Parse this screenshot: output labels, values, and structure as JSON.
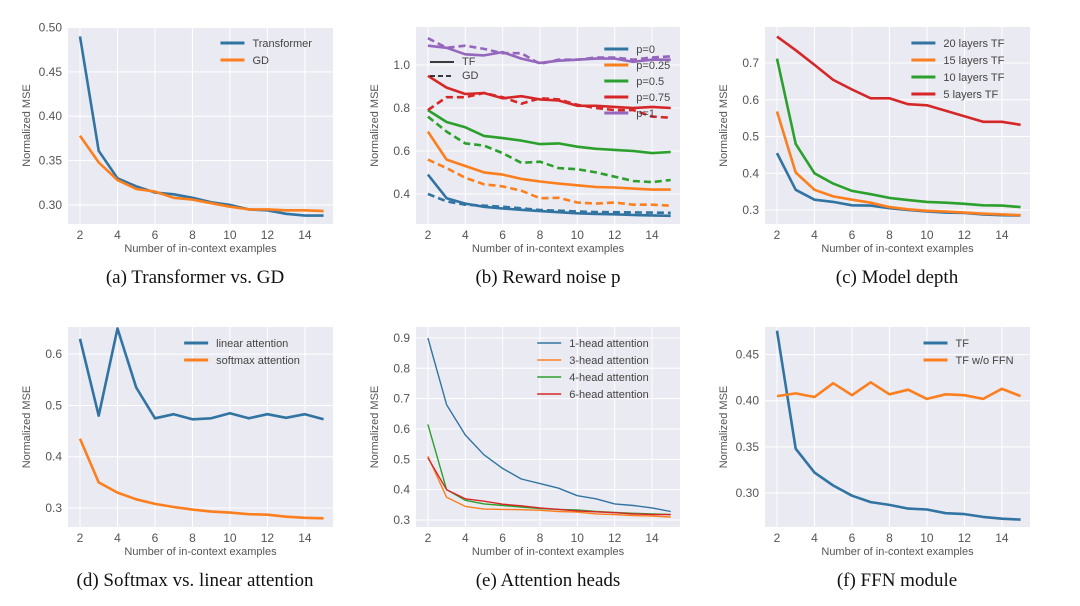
{
  "colors": {
    "blue": "#3274a1",
    "orange": "#fb7f1e",
    "green": "#2ca02c",
    "red": "#d62728",
    "purple": "#9467bd",
    "plot_bg": "#eaeaf2",
    "grid": "#ffffff"
  },
  "chart_data": [
    {
      "type": "line",
      "caption": "(a) Transformer vs. GD",
      "xlabel": "Number of in-context examples",
      "ylabel": "Normalized MSE",
      "x": [
        2,
        3,
        4,
        5,
        6,
        7,
        8,
        9,
        10,
        11,
        12,
        13,
        14,
        15
      ],
      "xticks": [
        2,
        4,
        6,
        8,
        10,
        12,
        14
      ],
      "yticks": [
        "0.30",
        "0.35",
        "0.40",
        "0.45",
        "0.50"
      ],
      "ylim": [
        0.2785,
        0.5006
      ],
      "xlim": [
        1.36,
        15.5
      ],
      "grid": true,
      "legend": "top-right",
      "series": [
        {
          "name": "Transformer",
          "color": "#3274a1",
          "values": [
            0.49,
            0.361,
            0.33,
            0.321,
            0.314,
            0.312,
            0.308,
            0.303,
            0.3,
            0.295,
            0.294,
            0.29,
            0.288,
            0.288
          ]
        },
        {
          "name": "GD",
          "color": "#fb7f1e",
          "values": [
            0.378,
            0.348,
            0.328,
            0.318,
            0.315,
            0.308,
            0.306,
            0.302,
            0.298,
            0.295,
            0.295,
            0.294,
            0.294,
            0.293
          ]
        }
      ]
    },
    {
      "type": "line",
      "caption": "(b) Reward noise p",
      "xlabel": "Number of in-context examples",
      "ylabel": "Normalized MSE",
      "x": [
        2,
        3,
        4,
        5,
        6,
        7,
        8,
        9,
        10,
        11,
        12,
        13,
        14,
        15
      ],
      "xticks": [
        2,
        4,
        6,
        8,
        10,
        12,
        14
      ],
      "yticks": [
        "0.4",
        "0.6",
        "0.8",
        "1.0"
      ],
      "ylim": [
        0.26,
        1.177
      ],
      "xlim": [
        1.36,
        15.5
      ],
      "grid": true,
      "legend": "top-right",
      "style_legend": [
        {
          "name": "TF",
          "dash": false
        },
        {
          "name": "GD",
          "dash": true
        }
      ],
      "series": [
        {
          "name": "p=0",
          "color": "#3274a1",
          "values": [
            0.49,
            0.38,
            0.355,
            0.34,
            0.332,
            0.326,
            0.32,
            0.315,
            0.31,
            0.307,
            0.305,
            0.302,
            0.3,
            0.298
          ]
        },
        {
          "name": "p=0.25",
          "color": "#fb7f1e",
          "values": [
            0.69,
            0.56,
            0.53,
            0.5,
            0.49,
            0.47,
            0.458,
            0.448,
            0.44,
            0.432,
            0.43,
            0.425,
            0.42,
            0.42
          ]
        },
        {
          "name": "p=0.5",
          "color": "#2ca02c",
          "values": [
            0.79,
            0.735,
            0.71,
            0.67,
            0.66,
            0.648,
            0.632,
            0.635,
            0.62,
            0.61,
            0.605,
            0.6,
            0.59,
            0.595
          ]
        },
        {
          "name": "p=0.75",
          "color": "#d62728",
          "values": [
            0.95,
            0.895,
            0.865,
            0.87,
            0.845,
            0.855,
            0.84,
            0.835,
            0.81,
            0.81,
            0.805,
            0.8,
            0.805,
            0.8
          ]
        },
        {
          "name": "p=1",
          "color": "#9467bd",
          "values": [
            1.09,
            1.08,
            1.05,
            1.045,
            1.06,
            1.03,
            1.01,
            1.02,
            1.025,
            1.03,
            1.03,
            1.015,
            1.025,
            1.025
          ]
        },
        {
          "name": "p=0 GD",
          "color": "#3274a1",
          "dash": true,
          "values": [
            0.4,
            0.365,
            0.35,
            0.345,
            0.34,
            0.333,
            0.325,
            0.322,
            0.318,
            0.316,
            0.315,
            0.314,
            0.313,
            0.312
          ]
        },
        {
          "name": "p=0.25 GD",
          "color": "#fb7f1e",
          "dash": true,
          "values": [
            0.56,
            0.52,
            0.475,
            0.445,
            0.435,
            0.415,
            0.38,
            0.382,
            0.36,
            0.355,
            0.36,
            0.35,
            0.35,
            0.345
          ]
        },
        {
          "name": "p=0.5 GD",
          "color": "#2ca02c",
          "dash": true,
          "values": [
            0.76,
            0.69,
            0.635,
            0.625,
            0.59,
            0.545,
            0.55,
            0.52,
            0.515,
            0.5,
            0.48,
            0.46,
            0.455,
            0.465
          ]
        },
        {
          "name": "p=0.75 GD",
          "color": "#d62728",
          "dash": true,
          "values": [
            0.79,
            0.85,
            0.85,
            0.87,
            0.85,
            0.82,
            0.845,
            0.84,
            0.815,
            0.8,
            0.79,
            0.79,
            0.76,
            0.755
          ]
        },
        {
          "name": "p=1 GD",
          "color": "#9467bd",
          "dash": true,
          "values": [
            1.125,
            1.08,
            1.09,
            1.075,
            1.055,
            1.055,
            1.005,
            1.025,
            1.025,
            1.035,
            1.035,
            1.025,
            1.035,
            1.04
          ]
        }
      ]
    },
    {
      "type": "line",
      "caption": "(c) Model depth",
      "xlabel": "Number of in-context examples",
      "ylabel": "Normalized MSE",
      "x": [
        2,
        3,
        4,
        5,
        6,
        7,
        8,
        9,
        10,
        11,
        12,
        13,
        14,
        15
      ],
      "xticks": [
        2,
        4,
        6,
        8,
        10,
        12,
        14
      ],
      "yticks": [
        "0.3",
        "0.4",
        "0.5",
        "0.6",
        "0.7"
      ],
      "ylim": [
        0.262,
        0.798
      ],
      "xlim": [
        1.36,
        15.5
      ],
      "grid": true,
      "legend": "top-right",
      "series": [
        {
          "name": "20 layers TF",
          "color": "#3274a1",
          "values": [
            0.455,
            0.355,
            0.328,
            0.322,
            0.313,
            0.312,
            0.305,
            0.3,
            0.296,
            0.293,
            0.292,
            0.288,
            0.286,
            0.285
          ]
        },
        {
          "name": "15 layers TF",
          "color": "#fb7f1e",
          "values": [
            0.568,
            0.402,
            0.355,
            0.337,
            0.328,
            0.32,
            0.308,
            0.302,
            0.298,
            0.296,
            0.293,
            0.29,
            0.288,
            0.286
          ]
        },
        {
          "name": "10 layers TF",
          "color": "#2ca02c",
          "values": [
            0.712,
            0.48,
            0.4,
            0.372,
            0.352,
            0.343,
            0.333,
            0.327,
            0.322,
            0.32,
            0.317,
            0.313,
            0.312,
            0.308
          ]
        },
        {
          "name": "5 layers TF",
          "color": "#d62728",
          "values": [
            0.772,
            0.735,
            0.695,
            0.654,
            0.628,
            0.604,
            0.604,
            0.588,
            0.585,
            0.57,
            0.555,
            0.54,
            0.54,
            0.532
          ]
        }
      ]
    },
    {
      "type": "line",
      "caption": "(d) Softmax vs. linear attention",
      "xlabel": "Number of in-context examples",
      "ylabel": "Normalized MSE",
      "x": [
        2,
        3,
        4,
        5,
        6,
        7,
        8,
        9,
        10,
        11,
        12,
        13,
        14,
        15
      ],
      "xticks": [
        2,
        4,
        6,
        8,
        10,
        12,
        14
      ],
      "yticks": [
        "0.3",
        "0.4",
        "0.5",
        "0.6"
      ],
      "ylim": [
        0.263,
        0.653
      ],
      "xlim": [
        1.36,
        15.5
      ],
      "grid": true,
      "legend": "top-right",
      "series": [
        {
          "name": "linear attention",
          "color": "#3274a1",
          "values": [
            0.63,
            0.48,
            0.65,
            0.535,
            0.475,
            0.483,
            0.473,
            0.475,
            0.485,
            0.475,
            0.483,
            0.476,
            0.483,
            0.473
          ]
        },
        {
          "name": "softmax attention",
          "color": "#fb7f1e",
          "values": [
            0.435,
            0.35,
            0.33,
            0.317,
            0.308,
            0.302,
            0.297,
            0.293,
            0.291,
            0.288,
            0.287,
            0.283,
            0.281,
            0.28
          ]
        }
      ]
    },
    {
      "type": "line",
      "caption": "(e) Attention heads",
      "xlabel": "Number of in-context examples",
      "ylabel": "Normalized MSE",
      "x": [
        2,
        3,
        4,
        5,
        6,
        7,
        8,
        9,
        10,
        11,
        12,
        13,
        14,
        15
      ],
      "xticks": [
        2,
        4,
        6,
        8,
        10,
        12,
        14
      ],
      "yticks": [
        "0.3",
        "0.4",
        "0.5",
        "0.6",
        "0.7",
        "0.8",
        "0.9"
      ],
      "ylim": [
        0.277,
        0.936
      ],
      "xlim": [
        1.36,
        15.5
      ],
      "grid": true,
      "legend": "top-right",
      "thin": true,
      "series": [
        {
          "name": "1-head attention",
          "color": "#3274a1",
          "values": [
            0.9,
            0.68,
            0.58,
            0.515,
            0.47,
            0.435,
            0.42,
            0.405,
            0.38,
            0.37,
            0.353,
            0.348,
            0.34,
            0.328
          ]
        },
        {
          "name": "3-head attention",
          "color": "#fb7f1e",
          "values": [
            0.51,
            0.375,
            0.345,
            0.336,
            0.335,
            0.334,
            0.332,
            0.328,
            0.326,
            0.32,
            0.318,
            0.315,
            0.313,
            0.31
          ]
        },
        {
          "name": "4-head attention",
          "color": "#2ca02c",
          "values": [
            0.615,
            0.4,
            0.365,
            0.353,
            0.348,
            0.343,
            0.338,
            0.335,
            0.333,
            0.328,
            0.325,
            0.322,
            0.32,
            0.318
          ]
        },
        {
          "name": "6-head attention",
          "color": "#d62728",
          "values": [
            0.505,
            0.4,
            0.37,
            0.362,
            0.352,
            0.347,
            0.34,
            0.335,
            0.33,
            0.327,
            0.324,
            0.32,
            0.318,
            0.318
          ]
        }
      ]
    },
    {
      "type": "line",
      "caption": "(f) FFN module",
      "xlabel": "Number of in-context examples",
      "ylabel": "Normalized MSE",
      "x": [
        2,
        3,
        4,
        5,
        6,
        7,
        8,
        9,
        10,
        11,
        12,
        13,
        14,
        15
      ],
      "xticks": [
        2,
        4,
        6,
        8,
        10,
        12,
        14
      ],
      "yticks": [
        "0.30",
        "0.35",
        "0.40",
        "0.45"
      ],
      "ylim": [
        0.263,
        0.48
      ],
      "xlim": [
        1.36,
        15.5
      ],
      "grid": true,
      "legend": "top-right",
      "series": [
        {
          "name": "TF",
          "color": "#3274a1",
          "values": [
            0.476,
            0.348,
            0.322,
            0.308,
            0.297,
            0.29,
            0.287,
            0.283,
            0.282,
            0.278,
            0.277,
            0.274,
            0.272,
            0.271
          ]
        },
        {
          "name": "TF w/o FFN",
          "color": "#fb7f1e",
          "values": [
            0.405,
            0.408,
            0.404,
            0.419,
            0.406,
            0.42,
            0.407,
            0.412,
            0.402,
            0.407,
            0.406,
            0.402,
            0.413,
            0.405
          ]
        }
      ]
    }
  ]
}
